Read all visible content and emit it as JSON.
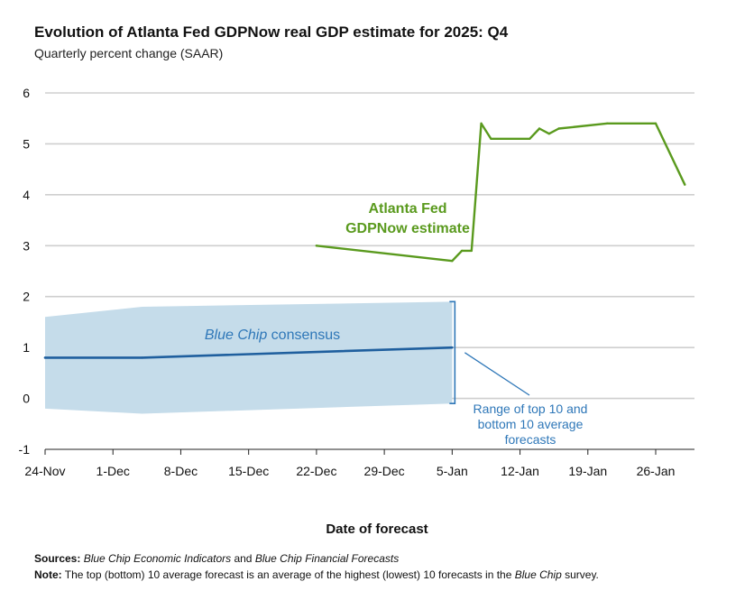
{
  "header": {
    "title": "Evolution of Atlanta Fed GDPNow real GDP estimate for 2025: Q4",
    "subtitle": "Quarterly percent change (SAAR)"
  },
  "footer": {
    "sources_label": "Sources:",
    "sources_parts": [
      "Blue Chip Economic Indicators",
      " and ",
      "Blue Chip Financial Forecasts"
    ],
    "note_label": "Note:",
    "note_parts": [
      "The top (bottom) 10 average forecast is an average of the highest (lowest) 10 forecasts in the ",
      "Blue Chip",
      " survey."
    ]
  },
  "chart_data": {
    "type": "line",
    "title": "Evolution of Atlanta Fed GDPNow real GDP estimate for 2025: Q4",
    "subtitle": "Quarterly percent change (SAAR)",
    "xlabel": "Date of forecast",
    "ylabel": "",
    "ylim": [
      -1,
      6
    ],
    "yticks": [
      -1,
      0,
      1,
      2,
      3,
      4,
      5,
      6
    ],
    "xlim": [
      "2025-11-24",
      "2026-01-30"
    ],
    "xticks": [
      {
        "date": "2025-11-24",
        "label": "24-Nov"
      },
      {
        "date": "2025-12-01",
        "label": "1-Dec"
      },
      {
        "date": "2025-12-08",
        "label": "8-Dec"
      },
      {
        "date": "2025-12-15",
        "label": "15-Dec"
      },
      {
        "date": "2025-12-22",
        "label": "22-Dec"
      },
      {
        "date": "2025-12-29",
        "label": "29-Dec"
      },
      {
        "date": "2026-01-05",
        "label": "5-Jan"
      },
      {
        "date": "2026-01-12",
        "label": "12-Jan"
      },
      {
        "date": "2026-01-19",
        "label": "19-Jan"
      },
      {
        "date": "2026-01-26",
        "label": "26-Jan"
      }
    ],
    "grid": "horizontal",
    "series": [
      {
        "name": "Atlanta Fed GDPNow estimate",
        "color": "#5a9a1e",
        "points": [
          {
            "x": "2025-12-22",
            "y": 3.0
          },
          {
            "x": "2026-01-05",
            "y": 2.7
          },
          {
            "x": "2026-01-06",
            "y": 2.9
          },
          {
            "x": "2026-01-07",
            "y": 2.9
          },
          {
            "x": "2026-01-08",
            "y": 5.4
          },
          {
            "x": "2026-01-09",
            "y": 5.1
          },
          {
            "x": "2026-01-13",
            "y": 5.1
          },
          {
            "x": "2026-01-14",
            "y": 5.3
          },
          {
            "x": "2026-01-15",
            "y": 5.2
          },
          {
            "x": "2026-01-16",
            "y": 5.3
          },
          {
            "x": "2026-01-21",
            "y": 5.4
          },
          {
            "x": "2026-01-26",
            "y": 5.4
          },
          {
            "x": "2026-01-29",
            "y": 4.2
          }
        ]
      },
      {
        "name": "Blue Chip consensus",
        "color": "#1f5f9e",
        "points": [
          {
            "x": "2025-11-24",
            "y": 0.8
          },
          {
            "x": "2025-12-04",
            "y": 0.8
          },
          {
            "x": "2026-01-05",
            "y": 1.0
          }
        ]
      }
    ],
    "band": {
      "name": "Range of top 10 and bottom 10 average forecasts",
      "color": "#c5dcea",
      "upper": [
        {
          "x": "2025-11-24",
          "y": 1.6
        },
        {
          "x": "2025-12-04",
          "y": 1.8
        },
        {
          "x": "2026-01-05",
          "y": 1.9
        }
      ],
      "lower": [
        {
          "x": "2025-11-24",
          "y": -0.2
        },
        {
          "x": "2025-12-04",
          "y": -0.3
        },
        {
          "x": "2026-01-05",
          "y": -0.1
        }
      ]
    },
    "annotations": [
      {
        "lines": [
          "Atlanta Fed",
          "GDPNow estimate"
        ],
        "color": "#5a9a1e"
      },
      {
        "parts": [
          "Blue Chip",
          " consensus"
        ],
        "color": "#2e77b8"
      },
      {
        "lines": [
          "Range of top 10 and",
          "bottom 10 average",
          "forecasts"
        ],
        "color": "#2e77b8"
      }
    ]
  }
}
